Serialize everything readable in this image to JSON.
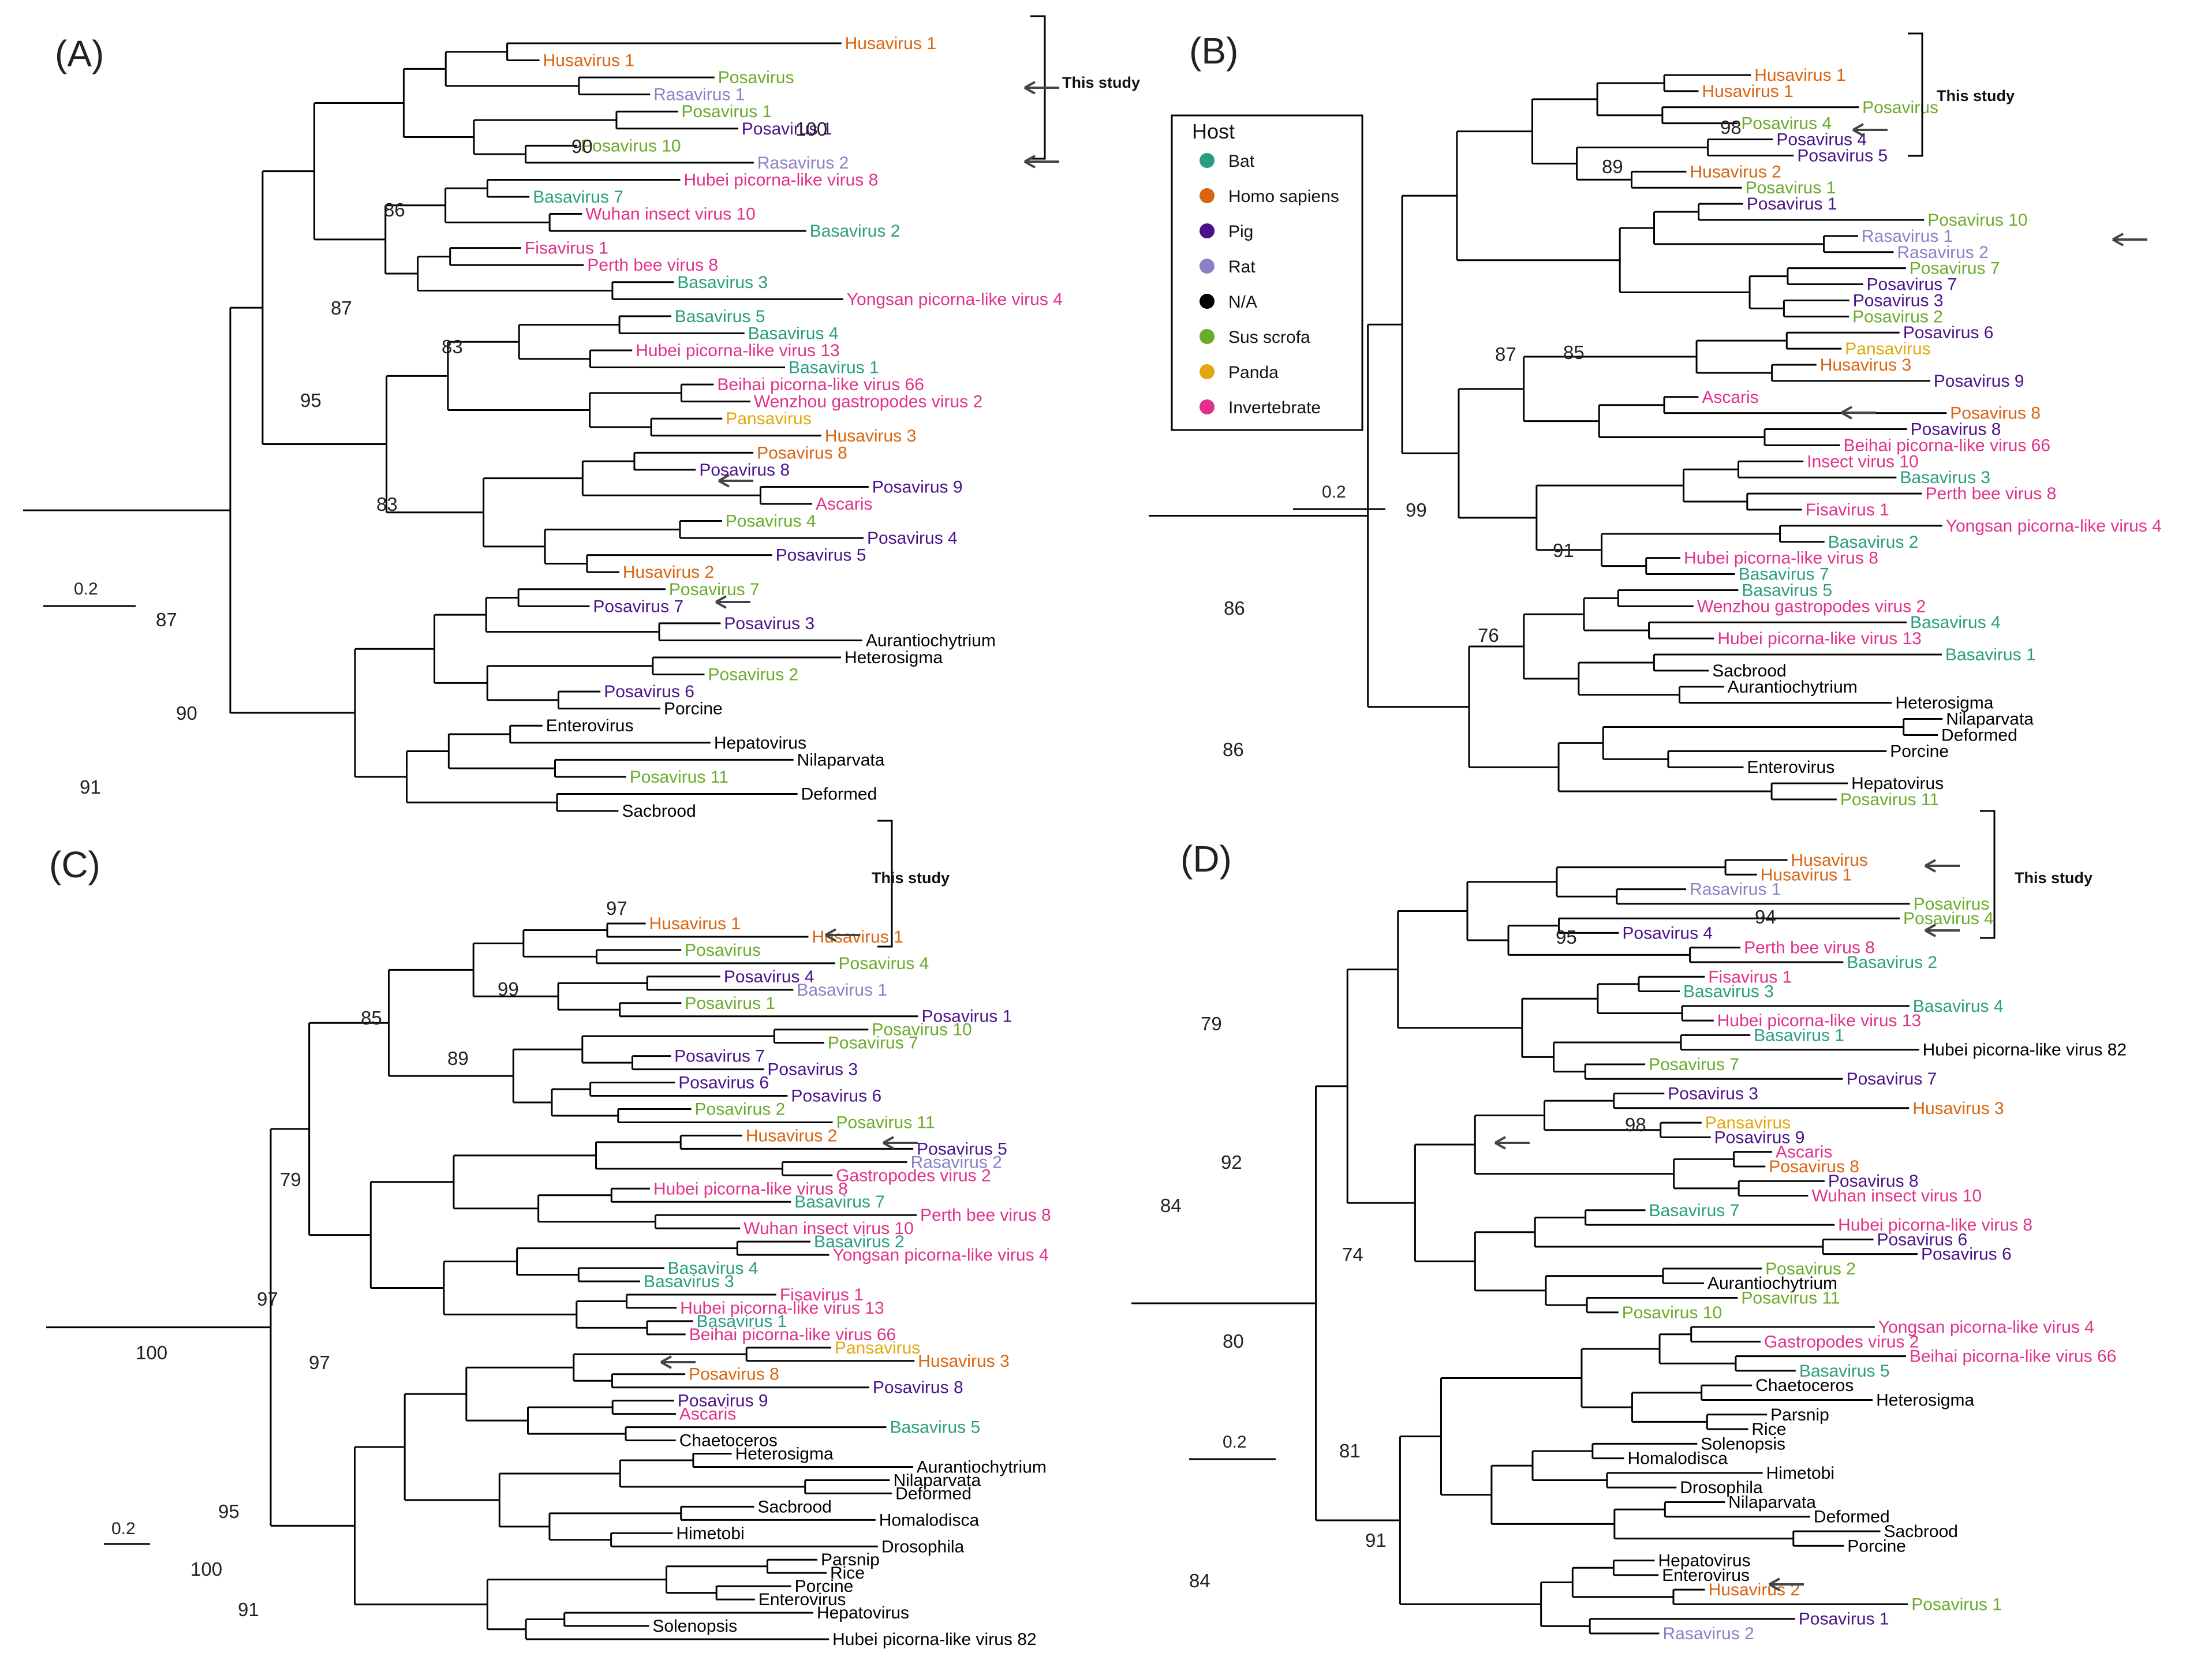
{
  "panels": [
    {
      "label": "(A)",
      "bracket_label": "This study",
      "scale_label": "0.2",
      "support_values": [
        "100",
        "90",
        "86",
        "87",
        "83",
        "95",
        "83",
        "87",
        "90",
        "91"
      ],
      "leaves": [
        {
          "name": "Husavirus 1",
          "host": "Homo sapiens"
        },
        {
          "name": "Husavirus 1",
          "host": "Homo sapiens"
        },
        {
          "name": "Posavirus",
          "host": "Sus scrofa"
        },
        {
          "name": "Rasavirus 1",
          "host": "Rat"
        },
        {
          "name": "Posavirus 1",
          "host": "Sus scrofa"
        },
        {
          "name": "Posavirus 1",
          "host": "Pig"
        },
        {
          "name": "Posavirus 10",
          "host": "Sus scrofa"
        },
        {
          "name": "Rasavirus 2",
          "host": "Rat"
        },
        {
          "name": "Hubei picorna-like virus 8",
          "host": "Invertebrate"
        },
        {
          "name": "Basavirus 7",
          "host": "Bat"
        },
        {
          "name": "Wuhan insect virus 10",
          "host": "Invertebrate"
        },
        {
          "name": "Basavirus 2",
          "host": "Bat"
        },
        {
          "name": "Fisavirus 1",
          "host": "Invertebrate"
        },
        {
          "name": "Perth bee virus 8",
          "host": "Invertebrate"
        },
        {
          "name": "Basavirus 3",
          "host": "Bat"
        },
        {
          "name": "Yongsan picorna-like virus 4",
          "host": "Invertebrate"
        },
        {
          "name": "Basavirus 5",
          "host": "Bat"
        },
        {
          "name": "Basavirus 4",
          "host": "Bat"
        },
        {
          "name": "Hubei picorna-like virus 13",
          "host": "Invertebrate"
        },
        {
          "name": "Basavirus 1",
          "host": "Bat"
        },
        {
          "name": "Beihai picorna-like virus 66",
          "host": "Invertebrate"
        },
        {
          "name": "Wenzhou gastropodes virus 2",
          "host": "Invertebrate"
        },
        {
          "name": "Pansavirus",
          "host": "Panda"
        },
        {
          "name": "Husavirus 3",
          "host": "Homo sapiens"
        },
        {
          "name": "Posavirus 8",
          "host": "Homo sapiens"
        },
        {
          "name": "Posavirus 8",
          "host": "Pig"
        },
        {
          "name": "Posavirus 9",
          "host": "Pig"
        },
        {
          "name": "Ascaris",
          "host": "Invertebrate"
        },
        {
          "name": "Posavirus 4",
          "host": "Sus scrofa"
        },
        {
          "name": "Posavirus 4",
          "host": "Pig"
        },
        {
          "name": "Posavirus 5",
          "host": "Pig"
        },
        {
          "name": "Husavirus 2",
          "host": "Homo sapiens"
        },
        {
          "name": "Posavirus 7",
          "host": "Sus scrofa"
        },
        {
          "name": "Posavirus 7",
          "host": "Pig"
        },
        {
          "name": "Posavirus 3",
          "host": "Pig"
        },
        {
          "name": "Aurantiochytrium",
          "host": "N/A"
        },
        {
          "name": "Heterosigma",
          "host": "N/A"
        },
        {
          "name": "Posavirus 2",
          "host": "Sus scrofa"
        },
        {
          "name": "Posavirus 6",
          "host": "Pig"
        },
        {
          "name": "Porcine",
          "host": "N/A"
        },
        {
          "name": "Enterovirus",
          "host": "N/A"
        },
        {
          "name": "Hepatovirus",
          "host": "N/A"
        },
        {
          "name": "Nilaparvata",
          "host": "N/A"
        },
        {
          "name": "Posavirus 11",
          "host": "Sus scrofa"
        },
        {
          "name": "Deformed",
          "host": "N/A"
        },
        {
          "name": "Sacbrood",
          "host": "N/A"
        }
      ]
    },
    {
      "label": "(B)",
      "bracket_label": "This study",
      "scale_label": "0.2",
      "support_values": [
        "98",
        "89",
        "87",
        "85",
        "99",
        "91",
        "76",
        "86",
        "86"
      ],
      "leaves": [
        {
          "name": "Husavirus 1",
          "host": "Homo sapiens"
        },
        {
          "name": "Husavirus 1",
          "host": "Homo sapiens"
        },
        {
          "name": "Posavirus",
          "host": "Sus scrofa"
        },
        {
          "name": "Posavirus 4",
          "host": "Sus scrofa"
        },
        {
          "name": "Posavirus 4",
          "host": "Pig"
        },
        {
          "name": "Posavirus 5",
          "host": "Pig"
        },
        {
          "name": "Husavirus 2",
          "host": "Homo sapiens"
        },
        {
          "name": "Posavirus 1",
          "host": "Sus scrofa"
        },
        {
          "name": "Posavirus 1",
          "host": "Pig"
        },
        {
          "name": "Posavirus 10",
          "host": "Sus scrofa"
        },
        {
          "name": "Rasavirus 1",
          "host": "Rat"
        },
        {
          "name": "Rasavirus 2",
          "host": "Rat"
        },
        {
          "name": "Posavirus 7",
          "host": "Sus scrofa"
        },
        {
          "name": "Posavirus 7",
          "host": "Pig"
        },
        {
          "name": "Posavirus 3",
          "host": "Pig"
        },
        {
          "name": "Posavirus 2",
          "host": "Sus scrofa"
        },
        {
          "name": "Posavirus 6",
          "host": "Pig"
        },
        {
          "name": "Pansavirus",
          "host": "Panda"
        },
        {
          "name": "Husavirus 3",
          "host": "Homo sapiens"
        },
        {
          "name": "Posavirus 9",
          "host": "Pig"
        },
        {
          "name": "Ascaris",
          "host": "Invertebrate"
        },
        {
          "name": "Posavirus 8",
          "host": "Homo sapiens"
        },
        {
          "name": "Posavirus 8",
          "host": "Pig"
        },
        {
          "name": "Beihai picorna-like virus 66",
          "host": "Invertebrate"
        },
        {
          "name": "Insect virus 10",
          "host": "Invertebrate"
        },
        {
          "name": "Basavirus 3",
          "host": "Bat"
        },
        {
          "name": "Perth bee virus 8",
          "host": "Invertebrate"
        },
        {
          "name": "Fisavirus 1",
          "host": "Invertebrate"
        },
        {
          "name": "Yongsan picorna-like virus 4",
          "host": "Invertebrate"
        },
        {
          "name": "Basavirus 2",
          "host": "Bat"
        },
        {
          "name": "Hubei picorna-like virus 8",
          "host": "Invertebrate"
        },
        {
          "name": "Basavirus 7",
          "host": "Bat"
        },
        {
          "name": "Basavirus 5",
          "host": "Bat"
        },
        {
          "name": "Wenzhou gastropodes virus 2",
          "host": "Invertebrate"
        },
        {
          "name": "Basavirus 4",
          "host": "Bat"
        },
        {
          "name": "Hubei picorna-like virus 13",
          "host": "Invertebrate"
        },
        {
          "name": "Basavirus 1",
          "host": "Bat"
        },
        {
          "name": "Sacbrood",
          "host": "N/A"
        },
        {
          "name": "Aurantiochytrium",
          "host": "N/A"
        },
        {
          "name": "Heterosigma",
          "host": "N/A"
        },
        {
          "name": "Nilaparvata",
          "host": "N/A"
        },
        {
          "name": "Deformed",
          "host": "N/A"
        },
        {
          "name": "Porcine",
          "host": "N/A"
        },
        {
          "name": "Enterovirus",
          "host": "N/A"
        },
        {
          "name": "Hepatovirus",
          "host": "N/A"
        },
        {
          "name": "Posavirus 11",
          "host": "Sus scrofa"
        }
      ]
    },
    {
      "label": "(C)",
      "bracket_label": "This study",
      "scale_label": "0.2",
      "support_values": [
        "97",
        "99",
        "85",
        "89",
        "79",
        "97",
        "97",
        "100",
        "95",
        "100",
        "91"
      ],
      "leaves": [
        {
          "name": "Husavirus 1",
          "host": "Homo sapiens"
        },
        {
          "name": "Husavirus 1",
          "host": "Homo sapiens"
        },
        {
          "name": "Posavirus",
          "host": "Sus scrofa"
        },
        {
          "name": "Posavirus 4",
          "host": "Sus scrofa"
        },
        {
          "name": "Posavirus 4",
          "host": "Pig"
        },
        {
          "name": "Basavirus 1",
          "host": "Rat"
        },
        {
          "name": "Posavirus 1",
          "host": "Sus scrofa"
        },
        {
          "name": "Posavirus 1",
          "host": "Pig"
        },
        {
          "name": "Posavirus 10",
          "host": "Sus scrofa"
        },
        {
          "name": "Posavirus 7",
          "host": "Sus scrofa"
        },
        {
          "name": "Posavirus 7",
          "host": "Pig"
        },
        {
          "name": "Posavirus 3",
          "host": "Pig"
        },
        {
          "name": "Posavirus 6",
          "host": "Pig"
        },
        {
          "name": "Posavirus 6",
          "host": "Pig"
        },
        {
          "name": "Posavirus 2",
          "host": "Sus scrofa"
        },
        {
          "name": "Posavirus 11",
          "host": "Sus scrofa"
        },
        {
          "name": "Husavirus 2",
          "host": "Homo sapiens"
        },
        {
          "name": "Posavirus 5",
          "host": "Pig"
        },
        {
          "name": "Rasavirus 2",
          "host": "Rat"
        },
        {
          "name": "Gastropodes virus 2",
          "host": "Invertebrate"
        },
        {
          "name": "Hubei picorna-like virus 8",
          "host": "Invertebrate"
        },
        {
          "name": "Basavirus 7",
          "host": "Bat"
        },
        {
          "name": "Perth bee virus 8",
          "host": "Invertebrate"
        },
        {
          "name": "Wuhan insect virus 10",
          "host": "Invertebrate"
        },
        {
          "name": "Basavirus 2",
          "host": "Bat"
        },
        {
          "name": "Yongsan picorna-like virus 4",
          "host": "Invertebrate"
        },
        {
          "name": "Basavirus 4",
          "host": "Bat"
        },
        {
          "name": "Basavirus 3",
          "host": "Bat"
        },
        {
          "name": "Fisavirus 1",
          "host": "Invertebrate"
        },
        {
          "name": "Hubei picorna-like virus 13",
          "host": "Invertebrate"
        },
        {
          "name": "Basavirus 1",
          "host": "Bat"
        },
        {
          "name": "Beihai picorna-like virus 66",
          "host": "Invertebrate"
        },
        {
          "name": "Pansavirus",
          "host": "Panda"
        },
        {
          "name": "Husavirus 3",
          "host": "Homo sapiens"
        },
        {
          "name": "Posavirus 8",
          "host": "Homo sapiens"
        },
        {
          "name": "Posavirus 8",
          "host": "Pig"
        },
        {
          "name": "Posavirus 9",
          "host": "Pig"
        },
        {
          "name": "Ascaris",
          "host": "Invertebrate"
        },
        {
          "name": "Basavirus 5",
          "host": "Bat"
        },
        {
          "name": "Chaetoceros",
          "host": "N/A"
        },
        {
          "name": "Heterosigma",
          "host": "N/A"
        },
        {
          "name": "Aurantiochytrium",
          "host": "N/A"
        },
        {
          "name": "Nilaparvata",
          "host": "N/A"
        },
        {
          "name": "Deformed",
          "host": "N/A"
        },
        {
          "name": "Sacbrood",
          "host": "N/A"
        },
        {
          "name": "Homalodisca",
          "host": "N/A"
        },
        {
          "name": "Himetobi",
          "host": "N/A"
        },
        {
          "name": "Drosophila",
          "host": "N/A"
        },
        {
          "name": "Parsnip",
          "host": "N/A"
        },
        {
          "name": "Rice",
          "host": "N/A"
        },
        {
          "name": "Porcine",
          "host": "N/A"
        },
        {
          "name": "Enterovirus",
          "host": "N/A"
        },
        {
          "name": "Hepatovirus",
          "host": "N/A"
        },
        {
          "name": "Solenopsis",
          "host": "N/A"
        },
        {
          "name": "Hubei picorna-like virus 82",
          "host": "N/A"
        }
      ]
    },
    {
      "label": "(D)",
      "bracket_label": "This study",
      "scale_label": "0.2",
      "support_values": [
        "94",
        "95",
        "79",
        "98",
        "92",
        "84",
        "74",
        "80",
        "81",
        "91",
        "84"
      ],
      "leaves": [
        {
          "name": "Husavirus",
          "host": "Homo sapiens"
        },
        {
          "name": "Husavirus 1",
          "host": "Homo sapiens"
        },
        {
          "name": "Rasavirus 1",
          "host": "Rat"
        },
        {
          "name": "Posavirus",
          "host": "Sus scrofa"
        },
        {
          "name": "Posavirus 4",
          "host": "Sus scrofa"
        },
        {
          "name": "Posavirus 4",
          "host": "Pig"
        },
        {
          "name": "Perth bee virus 8",
          "host": "Invertebrate"
        },
        {
          "name": "Basavirus 2",
          "host": "Bat"
        },
        {
          "name": "Fisavirus 1",
          "host": "Invertebrate"
        },
        {
          "name": "Basavirus 3",
          "host": "Bat"
        },
        {
          "name": "Basavirus 4",
          "host": "Bat"
        },
        {
          "name": "Hubei picorna-like virus 13",
          "host": "Invertebrate"
        },
        {
          "name": "Basavirus 1",
          "host": "Bat"
        },
        {
          "name": "Hubei picorna-like virus 82",
          "host": "N/A"
        },
        {
          "name": "Posavirus 7",
          "host": "Sus scrofa"
        },
        {
          "name": "Posavirus 7",
          "host": "Pig"
        },
        {
          "name": "Posavirus 3",
          "host": "Pig"
        },
        {
          "name": "Husavirus 3",
          "host": "Homo sapiens"
        },
        {
          "name": "Pansavirus",
          "host": "Panda"
        },
        {
          "name": "Posavirus 9",
          "host": "Pig"
        },
        {
          "name": "Ascaris",
          "host": "Invertebrate"
        },
        {
          "name": "Posavirus 8",
          "host": "Homo sapiens"
        },
        {
          "name": "Posavirus 8",
          "host": "Pig"
        },
        {
          "name": "Wuhan insect virus 10",
          "host": "Invertebrate"
        },
        {
          "name": "Basavirus 7",
          "host": "Bat"
        },
        {
          "name": "Hubei picorna-like virus 8",
          "host": "Invertebrate"
        },
        {
          "name": "Posavirus 6",
          "host": "Pig"
        },
        {
          "name": "Posavirus 6",
          "host": "Pig"
        },
        {
          "name": "Posavirus 2",
          "host": "Sus scrofa"
        },
        {
          "name": "Aurantiochytrium",
          "host": "N/A"
        },
        {
          "name": "Posavirus 11",
          "host": "Sus scrofa"
        },
        {
          "name": "Posavirus 10",
          "host": "Sus scrofa"
        },
        {
          "name": "Yongsan picorna-like virus 4",
          "host": "Invertebrate"
        },
        {
          "name": "Gastropodes virus 2",
          "host": "Invertebrate"
        },
        {
          "name": "Beihai picorna-like virus 66",
          "host": "Invertebrate"
        },
        {
          "name": "Basavirus 5",
          "host": "Bat"
        },
        {
          "name": "Chaetoceros",
          "host": "N/A"
        },
        {
          "name": "Heterosigma",
          "host": "N/A"
        },
        {
          "name": "Parsnip",
          "host": "N/A"
        },
        {
          "name": "Rice",
          "host": "N/A"
        },
        {
          "name": "Solenopsis",
          "host": "N/A"
        },
        {
          "name": "Homalodisca",
          "host": "N/A"
        },
        {
          "name": "Himetobi",
          "host": "N/A"
        },
        {
          "name": "Drosophila",
          "host": "N/A"
        },
        {
          "name": "Nilaparvata",
          "host": "N/A"
        },
        {
          "name": "Deformed",
          "host": "N/A"
        },
        {
          "name": "Sacbrood",
          "host": "N/A"
        },
        {
          "name": "Porcine",
          "host": "N/A"
        },
        {
          "name": "Hepatovirus",
          "host": "N/A"
        },
        {
          "name": "Enterovirus",
          "host": "N/A"
        },
        {
          "name": "Husavirus 2",
          "host": "Homo sapiens"
        },
        {
          "name": "Posavirus 1",
          "host": "Sus scrofa"
        },
        {
          "name": "Posavirus 1",
          "host": "Pig"
        },
        {
          "name": "Rasavirus 2",
          "host": "Rat"
        }
      ]
    }
  ],
  "legend": {
    "title": "Host",
    "items": [
      {
        "label": "Bat",
        "color": "#2a9d7f"
      },
      {
        "label": "Homo sapiens",
        "color": "#d9640f"
      },
      {
        "label": "Pig",
        "color": "#4b1288"
      },
      {
        "label": "Rat",
        "color": "#8a80c4"
      },
      {
        "label": "N/A",
        "color": "#000000"
      },
      {
        "label": "Sus scrofa",
        "color": "#6aab2a"
      },
      {
        "label": "Panda",
        "color": "#e2a80d"
      },
      {
        "label": "Invertebrate",
        "color": "#e0328a"
      }
    ]
  }
}
